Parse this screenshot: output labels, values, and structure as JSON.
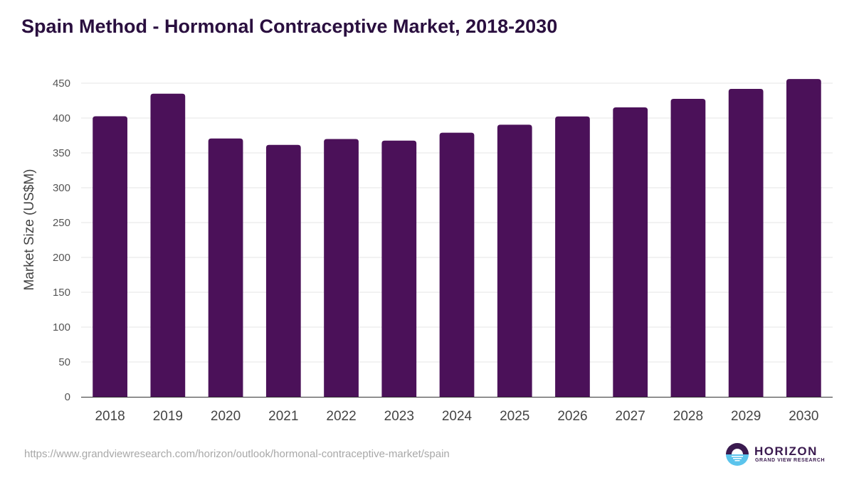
{
  "title": "Spain Method - Hormonal Contraceptive Market, 2018-2030",
  "source_url": "https://www.grandviewresearch.com/horizon/outlook/hormonal-contraceptive-market/spain",
  "logo": {
    "name": "HORIZON",
    "subtitle": "GRAND VIEW RESEARCH",
    "icon": "horizon-logo-icon"
  },
  "colors": {
    "bar": "#4b1159",
    "title": "#2a0f3f",
    "grid": "#e6e6e6",
    "axis": "#333333",
    "tick_text": "#555555",
    "logo_dark": "#3a1a4f",
    "logo_light": "#5bc4ec"
  },
  "chart_data": {
    "type": "bar",
    "title": "Spain Method - Hormonal Contraceptive Market, 2018-2030",
    "xlabel": "",
    "ylabel": "Market Size (US$M)",
    "categories": [
      "2018",
      "2019",
      "2020",
      "2021",
      "2022",
      "2023",
      "2024",
      "2025",
      "2026",
      "2027",
      "2028",
      "2029",
      "2030"
    ],
    "values": [
      402.6,
      435.0,
      370.7,
      361.5,
      369.9,
      367.6,
      378.9,
      390.4,
      402.3,
      415.3,
      427.6,
      441.8,
      456.0
    ],
    "ylim": [
      0,
      450
    ],
    "yticks": [
      0,
      50,
      100,
      150,
      200,
      250,
      300,
      350,
      400,
      450
    ],
    "grid": true,
    "legend": "none"
  }
}
